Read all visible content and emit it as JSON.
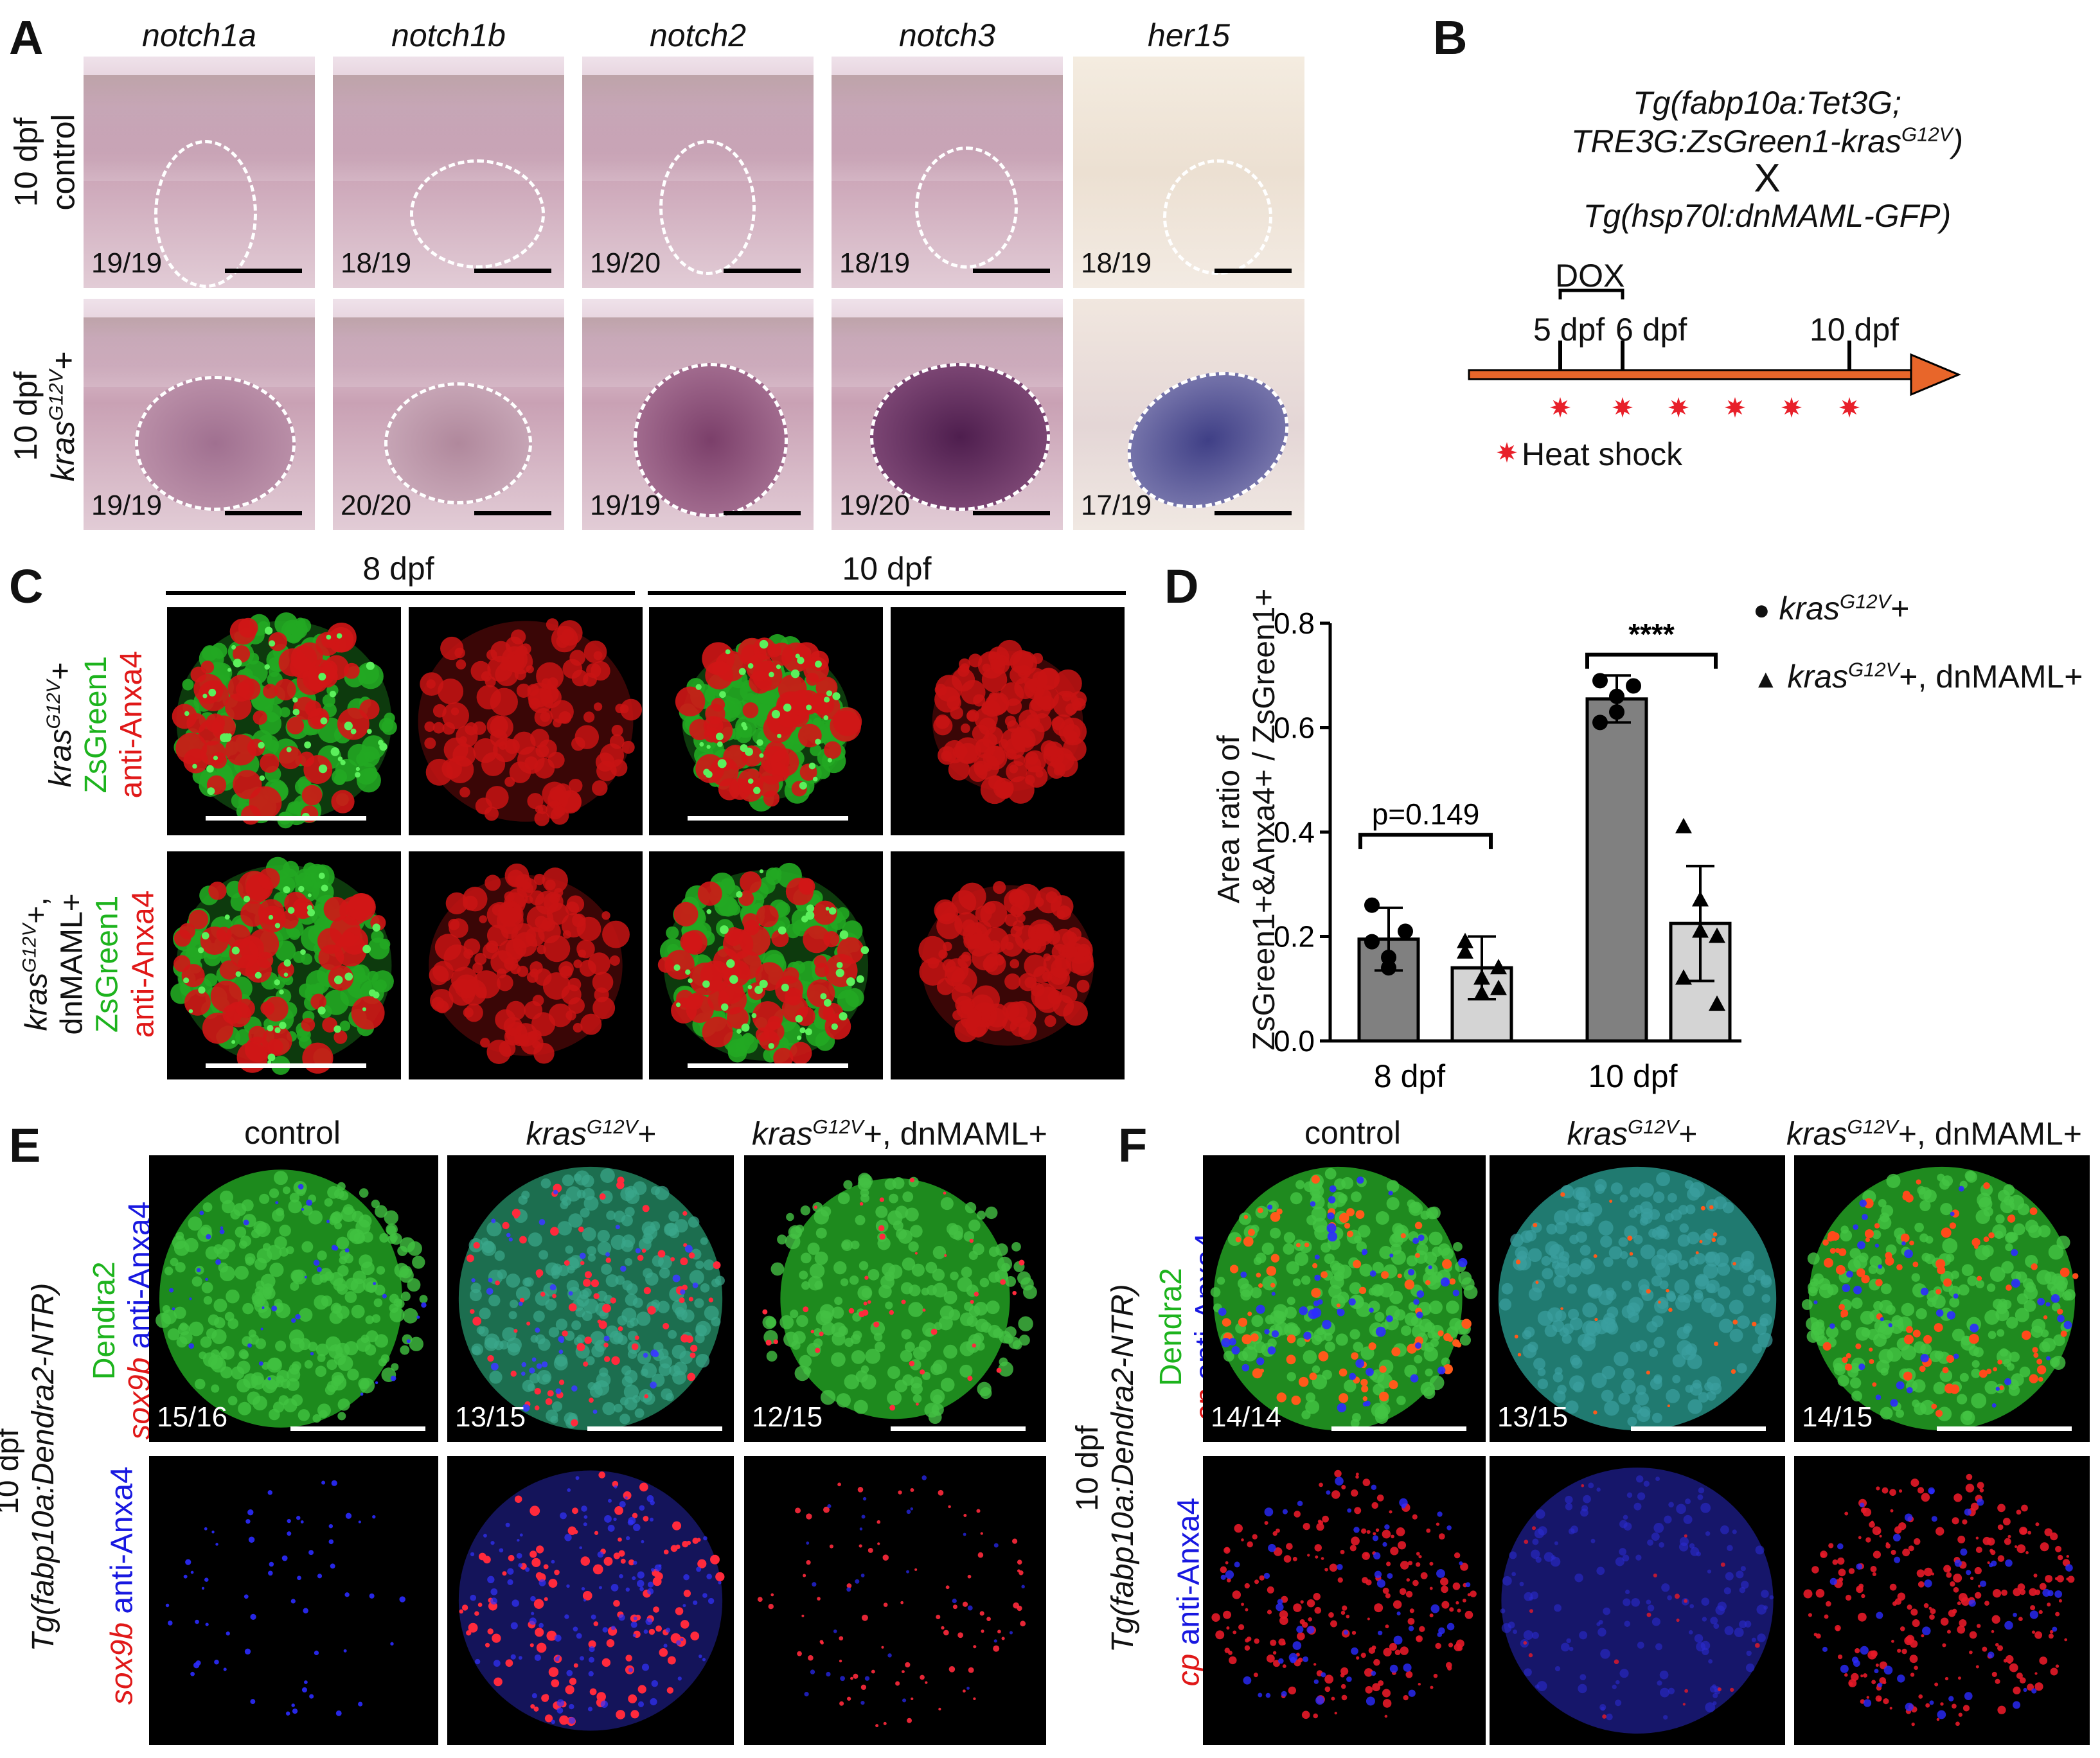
{
  "labels": {
    "A": "A",
    "B": "B",
    "C": "C",
    "D": "D",
    "E": "E",
    "F": "F"
  },
  "panel_a": {
    "genes": [
      "notch1a",
      "notch1b",
      "notch2",
      "notch3",
      "her15"
    ],
    "row_labels": [
      "10 dpf control",
      "10 dpf krasG12V+"
    ],
    "counts_control": [
      "19/19",
      "18/19",
      "19/20",
      "18/19",
      "18/19"
    ],
    "counts_kras": [
      "19/19",
      "20/20",
      "19/19",
      "19/20",
      "17/19"
    ]
  },
  "panel_b": {
    "line1": "Tg(fabp10a:Tet3G;",
    "line2": "TRE3G:ZsGreen1-kras",
    "line2_sup": "G12V",
    "line2_end": ")",
    "cross": "X",
    "line3": "Tg(hsp70l:dnMAML-GFP)",
    "dox": "DOX",
    "t1": "5 dpf",
    "t2": "6 dpf",
    "t3": "10 dpf",
    "legend": "Heat shock",
    "colors": {
      "arrow": "#e8662a",
      "star": "#e8202a"
    }
  },
  "panel_c": {
    "headers": [
      "8 dpf",
      "10 dpf"
    ],
    "row1": {
      "line1": "kras",
      "sup": "G12V",
      "after": "+",
      "g": "ZsGreen1",
      "r": "anti-Anxa4"
    },
    "row2": {
      "line1": "kras",
      "sup": "G12V",
      "after": "+,",
      "line2": "dnMAML+",
      "g": "ZsGreen1",
      "r": "anti-Anxa4"
    }
  },
  "chart_data": {
    "type": "bar",
    "ylabel_line1": "Area ratio of",
    "ylabel_line2": "ZsGreen1+&Anxa4+ / ZsGreen1+",
    "categories": [
      "8 dpf",
      "10 dpf"
    ],
    "ylim": [
      0,
      0.8
    ],
    "yticks": [
      "0.0",
      "0.2",
      "0.4",
      "0.6",
      "0.8"
    ],
    "series": [
      {
        "name": "krasG12V+",
        "legend_base": "kras",
        "legend_sup": "G12V",
        "legend_after": "+",
        "marker": "circle",
        "color": "#808080",
        "values": [
          0.195,
          0.655
        ],
        "sd": [
          0.06,
          0.045
        ],
        "points": [
          [
            0.26,
            0.16,
            0.21,
            0.19,
            0.14
          ],
          [
            0.69,
            0.63,
            0.68,
            0.61,
            0.66
          ]
        ]
      },
      {
        "name": "krasG12V+, dnMAML+",
        "legend_base": "kras",
        "legend_sup": "G12V",
        "legend_after": "+, dnMAML+",
        "marker": "triangle",
        "color": "#d4d4d4",
        "values": [
          0.14,
          0.225
        ],
        "sd": [
          0.06,
          0.11
        ],
        "points": [
          [
            0.19,
            0.09,
            0.14,
            0.17,
            0.12,
            0.1
          ],
          [
            0.41,
            0.27,
            0.2,
            0.12,
            0.21,
            0.07
          ]
        ]
      }
    ],
    "annotations": [
      "p=0.149",
      "****"
    ]
  },
  "panel_e": {
    "headers": [
      "control",
      "kras",
      "+",
      "kras",
      "+, dnMAML+"
    ],
    "header_sup": "G12V",
    "counts": [
      "15/16",
      "13/15",
      "12/15"
    ],
    "side_line1": "10 dpf",
    "side_line2": "Tg(fabp10a:Dendra2-NTR)",
    "row1_g": "Dendra2",
    "row1_r": "sox9b",
    "row1_b": "anti-Anxa4",
    "row2_r": "sox9b",
    "row2_b": "anti-Anxa4"
  },
  "panel_f": {
    "headers": [
      "control",
      "kras",
      "+",
      "kras",
      "+, dnMAML+"
    ],
    "header_sup": "G12V",
    "counts": [
      "14/14",
      "13/15",
      "14/15"
    ],
    "side_line1": "10 dpf",
    "side_line2": "Tg(fabp10a:Dendra2-NTR)",
    "row1_g": "Dendra2",
    "row1_r": "cp",
    "row1_b": "anti-Anxa4",
    "row2_r": "cp",
    "row2_b": "anti-Anxa4"
  }
}
